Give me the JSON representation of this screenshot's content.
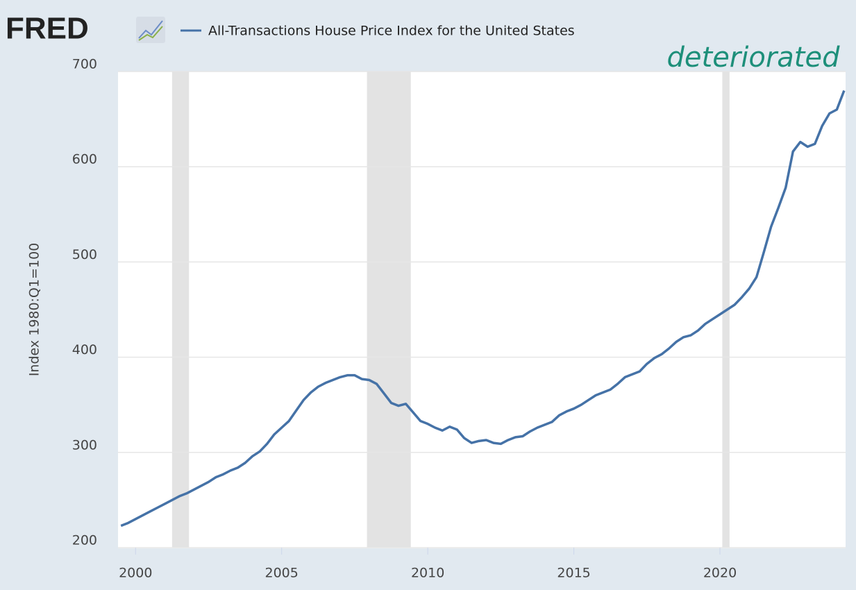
{
  "logo": "FRED",
  "chart_data": {
    "type": "line",
    "legend": "All-Transactions House Price Index for the United States",
    "y_label": "Index 1980:Q1=100",
    "annotation": "deteriorated",
    "x": [
      1999.5,
      1999.75,
      2000,
      2000.25,
      2000.5,
      2000.75,
      2001,
      2001.25,
      2001.5,
      2001.75,
      2002,
      2002.25,
      2002.5,
      2002.75,
      2003,
      2003.25,
      2003.5,
      2003.75,
      2004,
      2004.25,
      2004.5,
      2004.75,
      2005,
      2005.25,
      2005.5,
      2005.75,
      2006,
      2006.25,
      2006.5,
      2006.75,
      2007,
      2007.25,
      2007.5,
      2007.75,
      2008,
      2008.25,
      2008.5,
      2008.75,
      2009,
      2009.25,
      2009.5,
      2009.75,
      2010,
      2010.25,
      2010.5,
      2010.75,
      2011,
      2011.25,
      2011.5,
      2011.75,
      2012,
      2012.25,
      2012.5,
      2012.75,
      2013,
      2013.25,
      2013.5,
      2013.75,
      2014,
      2014.25,
      2014.5,
      2014.75,
      2015,
      2015.25,
      2015.5,
      2015.75,
      2016,
      2016.25,
      2016.5,
      2016.75,
      2017,
      2017.25,
      2017.5,
      2017.75,
      2018,
      2018.25,
      2018.5,
      2018.75,
      2019,
      2019.25,
      2019.5,
      2019.75,
      2020,
      2020.25,
      2020.5,
      2020.75,
      2021,
      2021.25,
      2021.5,
      2021.75,
      2022,
      2022.25,
      2022.5,
      2022.75,
      2023,
      2023.25,
      2023.5,
      2023.75,
      2024,
      2024.25
    ],
    "series": [
      {
        "name": "All-Transactions House Price Index for the United States",
        "color": "#4572a7",
        "values": [
          223,
          226,
          230,
          234,
          238,
          242,
          246,
          250,
          254,
          257,
          261,
          265,
          269,
          274,
          277,
          281,
          284,
          289,
          296,
          301,
          309,
          319,
          326,
          333,
          344,
          355,
          363,
          369,
          373,
          376,
          379,
          381,
          381,
          377,
          376,
          372,
          362,
          352,
          349,
          351,
          342,
          333,
          330,
          326,
          323,
          327,
          324,
          315,
          310,
          312,
          313,
          310,
          309,
          313,
          316,
          317,
          322,
          326,
          329,
          332,
          339,
          343,
          346,
          350,
          355,
          360,
          363,
          366,
          372,
          379,
          382,
          385,
          393,
          399,
          403,
          409,
          416,
          421,
          423,
          428,
          435,
          440,
          445,
          450,
          455,
          463,
          472,
          484,
          510,
          537,
          557,
          578,
          616,
          626,
          621,
          624,
          643,
          656,
          660,
          680
        ]
      }
    ],
    "recessions": [
      {
        "start": 2001.25,
        "end": 2001.83
      },
      {
        "start": 2007.92,
        "end": 2009.42
      },
      {
        "start": 2020.08,
        "end": 2020.33
      }
    ],
    "xlim": [
      1999.4,
      2024.3
    ],
    "xticks": [
      2000,
      2005,
      2010,
      2015,
      2020
    ],
    "ylim": [
      200,
      700
    ],
    "yticks": [
      200,
      300,
      400,
      500,
      600,
      700
    ],
    "grid": true
  }
}
